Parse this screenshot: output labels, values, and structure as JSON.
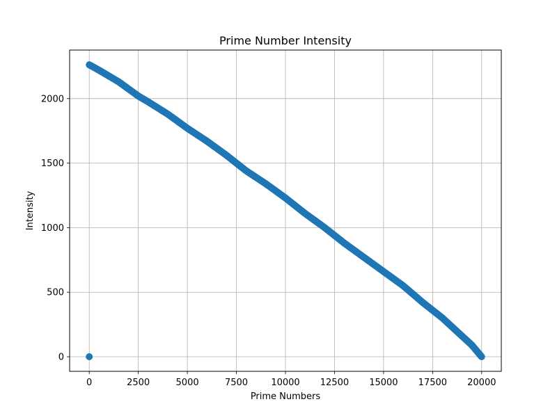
{
  "chart_data": {
    "type": "scatter",
    "title": "Prime Number Intensity",
    "xlabel": "Prime Numbers",
    "ylabel": "Intensity",
    "xlim": [
      -1000,
      21000
    ],
    "ylim": [
      -113,
      2376
    ],
    "xticks": [
      0,
      2500,
      5000,
      7500,
      10000,
      12500,
      15000,
      17500,
      20000
    ],
    "yticks": [
      0,
      500,
      1000,
      1500,
      2000
    ],
    "grid": true,
    "color": "#1f77b4",
    "series": [
      {
        "points": [
          [
            2,
            2262
          ],
          [
            500,
            2220
          ],
          [
            1000,
            2175
          ],
          [
            1500,
            2130
          ],
          [
            2000,
            2075
          ],
          [
            2500,
            2020
          ],
          [
            3000,
            1975
          ],
          [
            4000,
            1880
          ],
          [
            5000,
            1770
          ],
          [
            6000,
            1670
          ],
          [
            7000,
            1560
          ],
          [
            7500,
            1500
          ],
          [
            8000,
            1440
          ],
          [
            9000,
            1340
          ],
          [
            10000,
            1230
          ],
          [
            11000,
            1110
          ],
          [
            12000,
            1000
          ],
          [
            12500,
            940
          ],
          [
            13000,
            880
          ],
          [
            14000,
            770
          ],
          [
            15000,
            660
          ],
          [
            16000,
            550
          ],
          [
            17000,
            420
          ],
          [
            17500,
            360
          ],
          [
            18000,
            300
          ],
          [
            19000,
            160
          ],
          [
            19500,
            90
          ],
          [
            19997,
            0
          ]
        ],
        "outliers": [
          [
            0,
            0
          ]
        ]
      }
    ]
  }
}
